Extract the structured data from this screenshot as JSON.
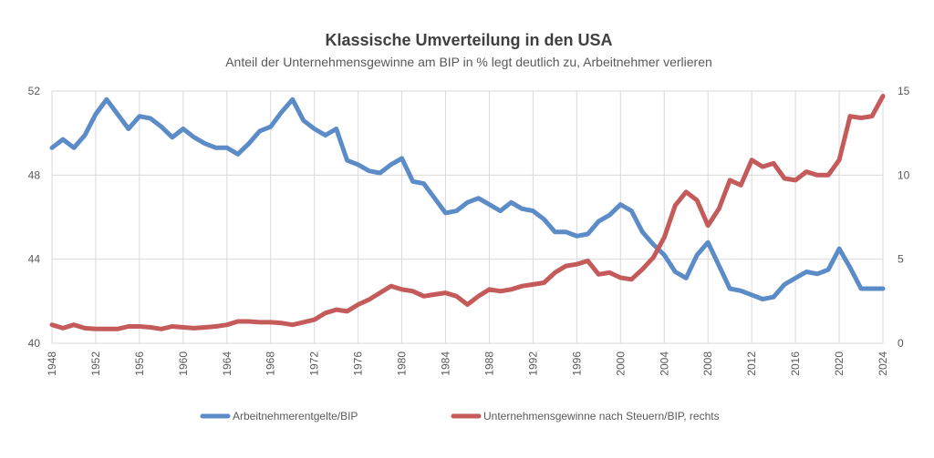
{
  "chart_data": {
    "type": "line",
    "title": "Klassische Umverteilung in den USA",
    "subtitle": "Anteil der Unternehmensgewinne am BIP in % legt deutlich zu, Arbeitnehmer verlieren",
    "x": [
      1948,
      1949,
      1950,
      1951,
      1952,
      1953,
      1954,
      1955,
      1956,
      1957,
      1958,
      1959,
      1960,
      1961,
      1962,
      1963,
      1964,
      1965,
      1966,
      1967,
      1968,
      1969,
      1970,
      1971,
      1972,
      1973,
      1974,
      1975,
      1976,
      1977,
      1978,
      1979,
      1980,
      1981,
      1982,
      1983,
      1984,
      1985,
      1986,
      1987,
      1988,
      1989,
      1990,
      1991,
      1992,
      1993,
      1994,
      1995,
      1996,
      1997,
      1998,
      1999,
      2000,
      2001,
      2002,
      2003,
      2004,
      2005,
      2006,
      2007,
      2008,
      2009,
      2010,
      2011,
      2012,
      2013,
      2014,
      2015,
      2016,
      2017,
      2018,
      2019,
      2020,
      2021,
      2022,
      2023,
      2024
    ],
    "xticks": [
      "1948",
      "1952",
      "1956",
      "1960",
      "1964",
      "1968",
      "1972",
      "1976",
      "1980",
      "1984",
      "1988",
      "1992",
      "1996",
      "2000",
      "2004",
      "2008",
      "2012",
      "2016",
      "2020",
      "2024"
    ],
    "ylim_left": [
      40,
      52
    ],
    "yticks_left": [
      "40",
      "44",
      "48",
      "52"
    ],
    "ylim_right": [
      0,
      15
    ],
    "yticks_right": [
      "0",
      "5",
      "10",
      "15"
    ],
    "grid": true,
    "legend_position": "bottom",
    "series": [
      {
        "name": "Arbeitnehmerentgelte/BIP",
        "axis": "left",
        "color": "#5b8cc8",
        "values": [
          49.3,
          49.7,
          49.3,
          49.9,
          50.9,
          51.6,
          50.9,
          50.2,
          50.8,
          50.7,
          50.3,
          49.8,
          50.2,
          49.8,
          49.5,
          49.3,
          49.3,
          49.0,
          49.5,
          50.1,
          50.3,
          51.0,
          51.6,
          50.6,
          50.2,
          49.9,
          50.2,
          48.7,
          48.5,
          48.2,
          48.1,
          48.5,
          48.8,
          47.7,
          47.6,
          46.9,
          46.2,
          46.3,
          46.7,
          46.9,
          46.6,
          46.3,
          46.7,
          46.4,
          46.3,
          45.9,
          45.3,
          45.3,
          45.1,
          45.2,
          45.8,
          46.1,
          46.6,
          46.3,
          45.3,
          44.7,
          44.2,
          43.4,
          43.1,
          44.2,
          44.8,
          43.7,
          42.6,
          42.5,
          42.3,
          42.1,
          42.2,
          42.8,
          43.1,
          43.4,
          43.3,
          43.5,
          44.5,
          43.6,
          42.6,
          42.6,
          42.6
        ]
      },
      {
        "name": "Unternehmensgewinne nach Steuern/BIP, rechts",
        "axis": "right",
        "color": "#c55a5a",
        "values": [
          1.1,
          0.9,
          1.1,
          0.9,
          0.85,
          0.85,
          0.85,
          1.0,
          1.0,
          0.95,
          0.85,
          1.0,
          0.95,
          0.9,
          0.95,
          1.0,
          1.1,
          1.3,
          1.3,
          1.25,
          1.25,
          1.2,
          1.1,
          1.25,
          1.4,
          1.8,
          2.0,
          1.9,
          2.3,
          2.6,
          3.0,
          3.4,
          3.2,
          3.1,
          2.8,
          2.9,
          3.0,
          2.8,
          2.3,
          2.8,
          3.2,
          3.1,
          3.2,
          3.4,
          3.5,
          3.6,
          4.2,
          4.6,
          4.7,
          4.9,
          4.1,
          4.2,
          3.9,
          3.8,
          4.4,
          5.1,
          6.3,
          8.2,
          9.0,
          8.5,
          7.0,
          8.0,
          9.7,
          9.4,
          10.9,
          10.5,
          10.7,
          9.8,
          9.7,
          10.2,
          10.0,
          10.0,
          10.9,
          13.5,
          13.4,
          13.5,
          14.7
        ]
      }
    ]
  }
}
